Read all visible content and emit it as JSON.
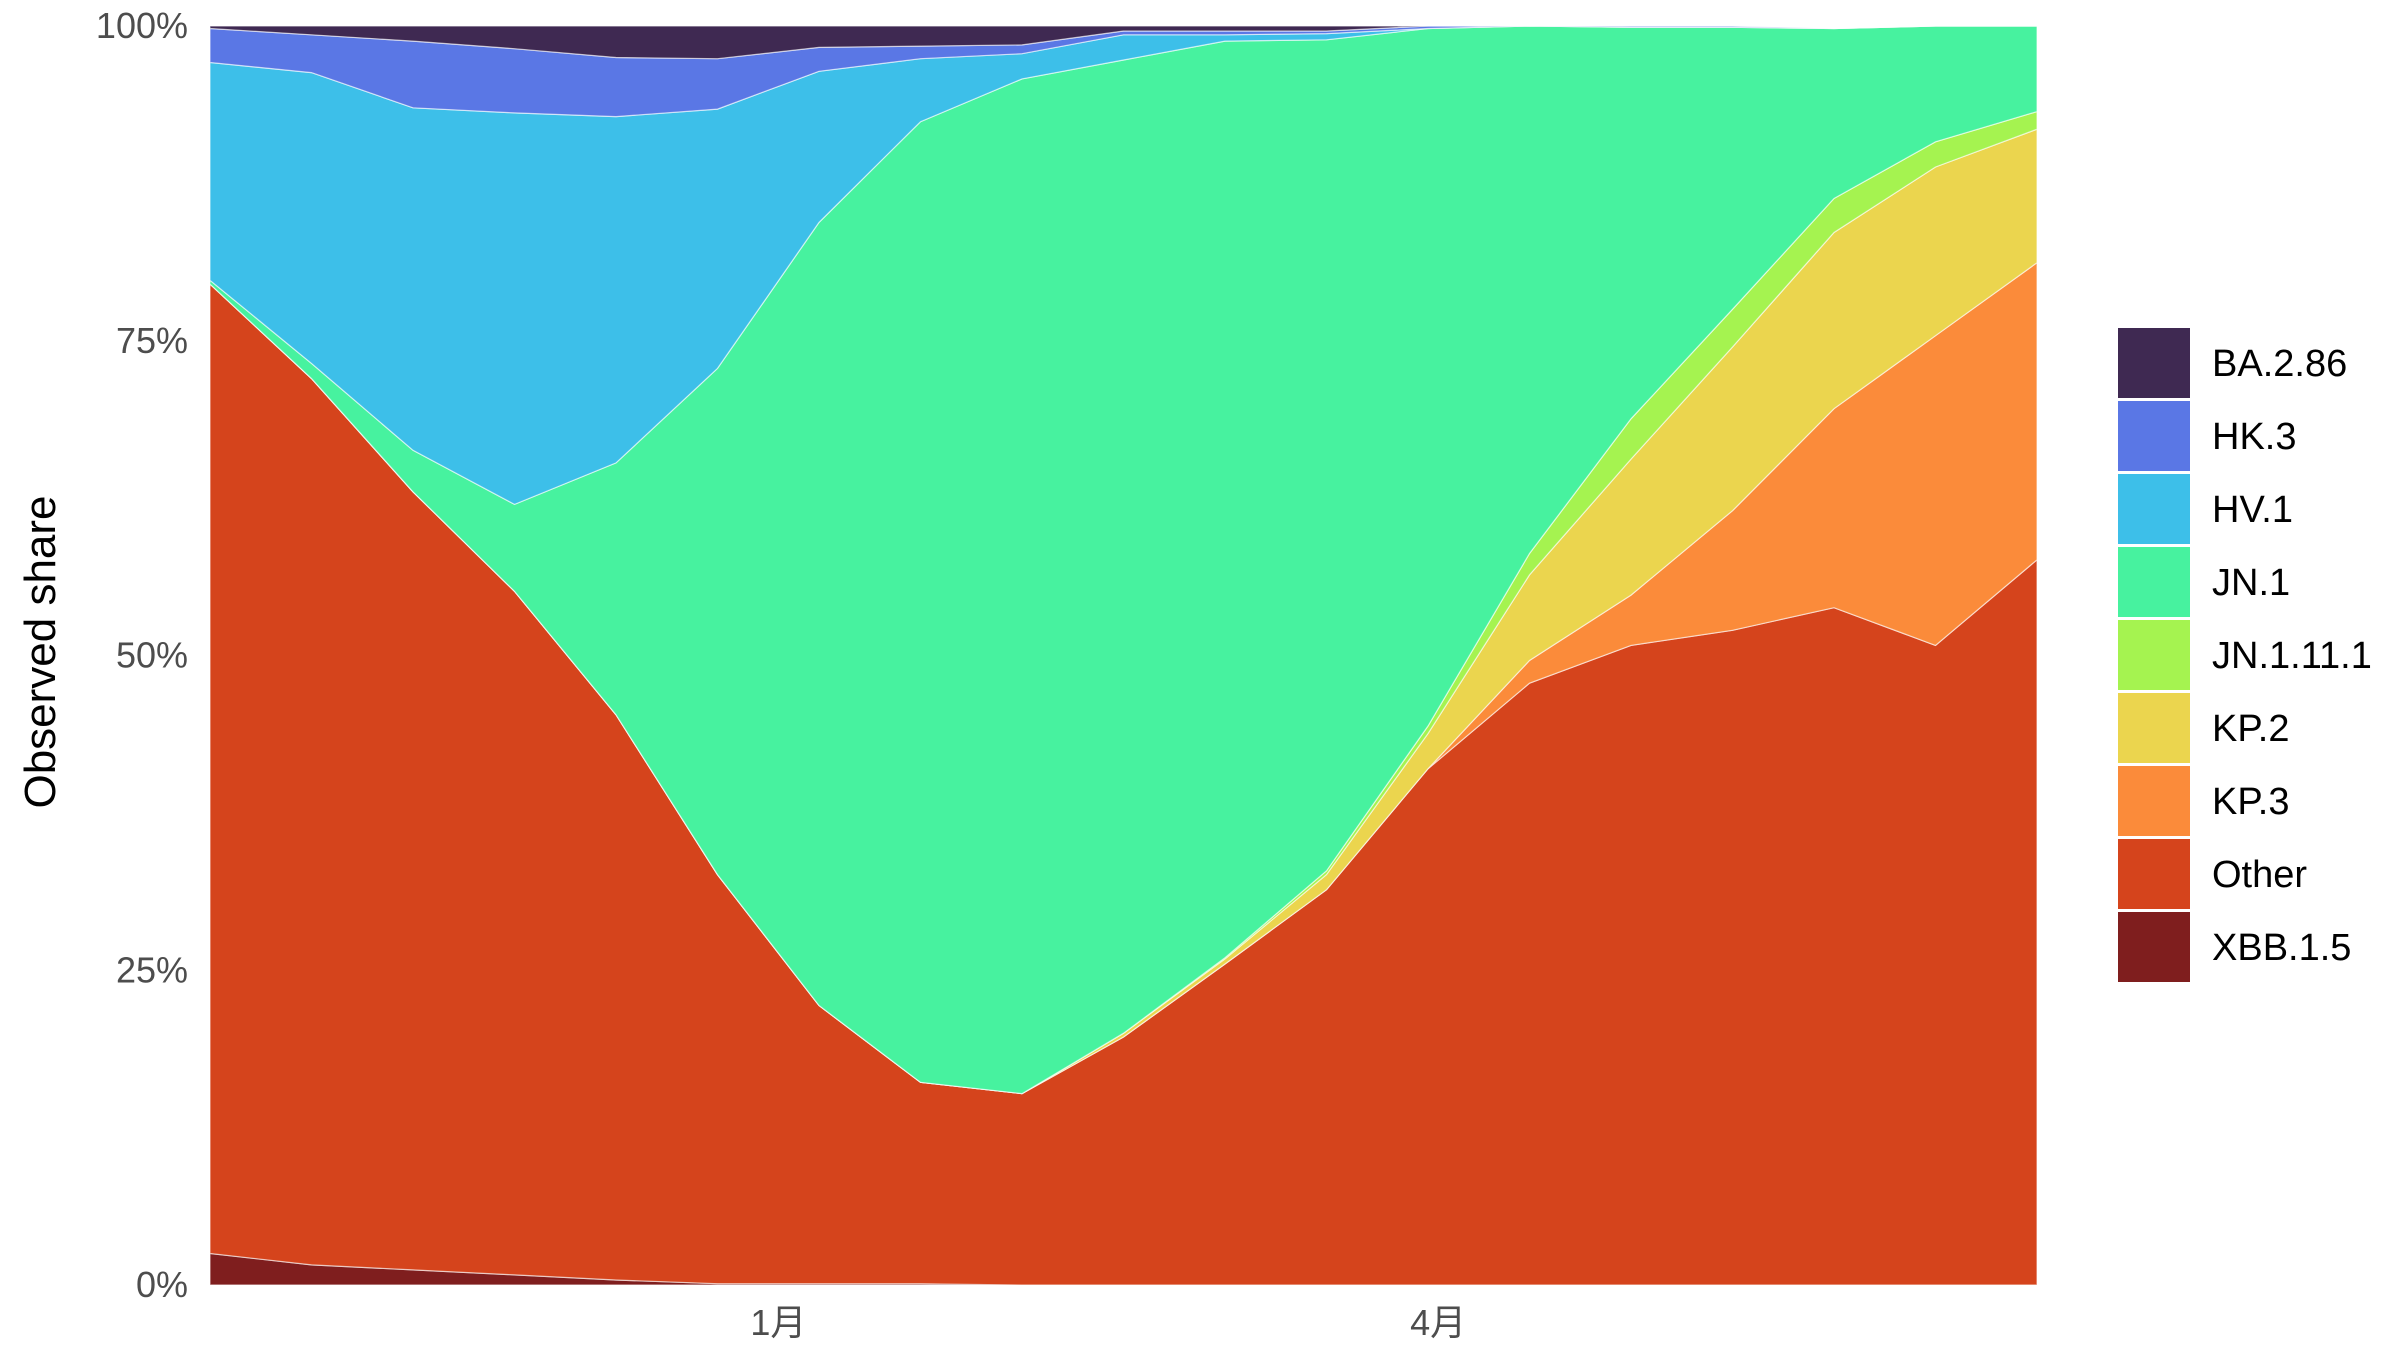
{
  "chart_data": {
    "type": "area",
    "stacked": true,
    "normalized": true,
    "title": "",
    "xlabel": "",
    "ylabel": "Observed share",
    "ylim": [
      0,
      1
    ],
    "y_ticks": [
      {
        "value": 0,
        "label": "0%"
      },
      {
        "value": 0.25,
        "label": "25%"
      },
      {
        "value": 0.5,
        "label": "50%"
      },
      {
        "value": 0.75,
        "label": "75%"
      },
      {
        "value": 1,
        "label": "100%"
      }
    ],
    "x_ticks": [
      {
        "index": 5.6,
        "label": "1月"
      },
      {
        "index": 12.1,
        "label": "4月"
      }
    ],
    "x_count": 19,
    "grid": false,
    "legend_position": "right",
    "series": [
      {
        "name": "XBB.1.5",
        "color": "#7f1e1e",
        "values": [
          0.025,
          0.016,
          0.012,
          0.008,
          0.004,
          0.001,
          0.001,
          0.001,
          0,
          0,
          0,
          0,
          0,
          0,
          0,
          0,
          0,
          0,
          0
        ]
      },
      {
        "name": "Other",
        "color": "#d5441c",
        "values": [
          0.77,
          0.704,
          0.618,
          0.543,
          0.449,
          0.325,
          0.221,
          0.16,
          0.152,
          0.197,
          0.255,
          0.314,
          0.41,
          0.478,
          0.508,
          0.52,
          0.538,
          0.508,
          0.576
        ]
      },
      {
        "name": "KP.3",
        "color": "#fb8b3a",
        "values": [
          0,
          0,
          0,
          0,
          0,
          0,
          0,
          0,
          0,
          0,
          0,
          0,
          0,
          0.018,
          0.04,
          0.095,
          0.158,
          0.246,
          0.236
        ]
      },
      {
        "name": "KP.2",
        "color": "#ebd54e",
        "values": [
          0,
          0,
          0,
          0,
          0,
          0,
          0,
          0,
          0,
          0.003,
          0.004,
          0.012,
          0.028,
          0.068,
          0.108,
          0.13,
          0.14,
          0.134,
          0.106
        ]
      },
      {
        "name": "JN.1.11.1",
        "color": "#a5f350",
        "values": [
          0,
          0,
          0,
          0,
          0,
          0,
          0,
          0,
          0,
          0,
          0.001,
          0.003,
          0.006,
          0.017,
          0.032,
          0.03,
          0.027,
          0.02,
          0.014
        ]
      },
      {
        "name": "JN.1",
        "color": "#47f29f",
        "values": [
          0.003,
          0.012,
          0.033,
          0.069,
          0.2,
          0.402,
          0.622,
          0.763,
          0.806,
          0.773,
          0.728,
          0.66,
          0.554,
          0.437,
          0.311,
          0.224,
          0.135,
          0.092,
          0.068
        ]
      },
      {
        "name": "HV.1",
        "color": "#3dbfe9",
        "values": [
          0.173,
          0.231,
          0.272,
          0.311,
          0.275,
          0.206,
          0.12,
          0.05,
          0.02,
          0.02,
          0.005,
          0.005,
          0,
          0,
          0,
          0,
          0,
          0,
          0
        ]
      },
      {
        "name": "HK.3",
        "color": "#5a77e5",
        "values": [
          0.027,
          0.03,
          0.053,
          0.051,
          0.047,
          0.04,
          0.019,
          0.01,
          0.007,
          0.003,
          0.003,
          0.002,
          0.002,
          0.002,
          0.001,
          0.001,
          0,
          0,
          0
        ]
      },
      {
        "name": "BA.2.86",
        "color": "#3f2952",
        "values": [
          0.002,
          0.007,
          0.012,
          0.018,
          0.025,
          0.026,
          0.017,
          0.016,
          0.015,
          0.004,
          0.004,
          0.004,
          0,
          0,
          0,
          0,
          0,
          0,
          0
        ]
      }
    ],
    "legend_order": [
      "BA.2.86",
      "HK.3",
      "HV.1",
      "JN.1",
      "JN.1.11.1",
      "KP.2",
      "KP.3",
      "Other",
      "XBB.1.5"
    ]
  }
}
